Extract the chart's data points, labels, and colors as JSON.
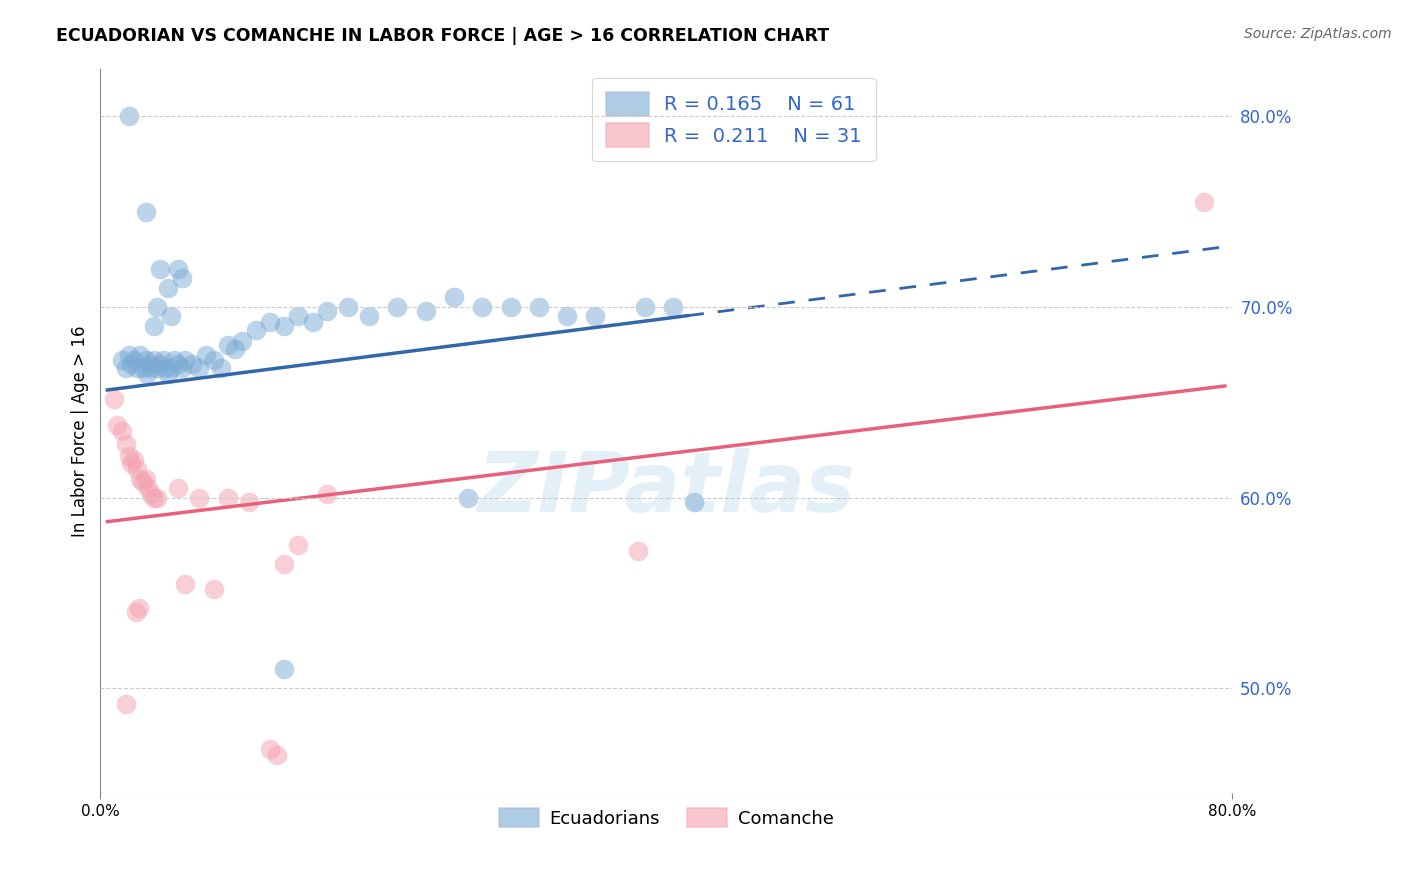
{
  "title": "ECUADORIAN VS COMANCHE IN LABOR FORCE | AGE > 16 CORRELATION CHART",
  "source": "Source: ZipAtlas.com",
  "ylabel": "In Labor Force | Age > 16",
  "legend_label_blue": "Ecuadorians",
  "legend_label_pink": "Comanche",
  "xlim": [
    0.0,
    0.8
  ],
  "ylim": [
    0.445,
    0.825
  ],
  "yticks_right": [
    0.5,
    0.6,
    0.7,
    0.8
  ],
  "ytick_labels_right": [
    "50.0%",
    "60.0%",
    "70.0%",
    "80.0%"
  ],
  "grid_color": "#cccccc",
  "watermark": "ZIPatlas",
  "blue_color": "#7AAAD4",
  "pink_color": "#F4A0B0",
  "blue_line_color": "#3366AA",
  "pink_line_color": "#E8607A",
  "blue_solid_xrange": [
    0.005,
    0.415
  ],
  "blue_dash_xrange": [
    0.415,
    0.795
  ],
  "blue_line_slope": 0.095,
  "blue_line_intercept": 0.656,
  "pink_line_slope": 0.09,
  "pink_line_intercept": 0.587,
  "blue_pts": [
    [
      0.02,
      0.8
    ],
    [
      0.032,
      0.75
    ],
    [
      0.038,
      0.69
    ],
    [
      0.04,
      0.7
    ],
    [
      0.042,
      0.72
    ],
    [
      0.048,
      0.71
    ],
    [
      0.05,
      0.695
    ],
    [
      0.055,
      0.72
    ],
    [
      0.058,
      0.715
    ],
    [
      0.015,
      0.672
    ],
    [
      0.018,
      0.668
    ],
    [
      0.02,
      0.675
    ],
    [
      0.022,
      0.67
    ],
    [
      0.024,
      0.672
    ],
    [
      0.026,
      0.668
    ],
    [
      0.028,
      0.675
    ],
    [
      0.03,
      0.668
    ],
    [
      0.032,
      0.672
    ],
    [
      0.033,
      0.665
    ],
    [
      0.035,
      0.67
    ],
    [
      0.036,
      0.668
    ],
    [
      0.038,
      0.672
    ],
    [
      0.04,
      0.668
    ],
    [
      0.042,
      0.67
    ],
    [
      0.044,
      0.672
    ],
    [
      0.046,
      0.668
    ],
    [
      0.048,
      0.665
    ],
    [
      0.05,
      0.668
    ],
    [
      0.052,
      0.672
    ],
    [
      0.055,
      0.67
    ],
    [
      0.058,
      0.668
    ],
    [
      0.06,
      0.672
    ],
    [
      0.065,
      0.67
    ],
    [
      0.07,
      0.668
    ],
    [
      0.075,
      0.675
    ],
    [
      0.08,
      0.672
    ],
    [
      0.085,
      0.668
    ],
    [
      0.09,
      0.68
    ],
    [
      0.095,
      0.678
    ],
    [
      0.1,
      0.682
    ],
    [
      0.11,
      0.688
    ],
    [
      0.12,
      0.692
    ],
    [
      0.13,
      0.69
    ],
    [
      0.14,
      0.695
    ],
    [
      0.15,
      0.692
    ],
    [
      0.16,
      0.698
    ],
    [
      0.175,
      0.7
    ],
    [
      0.19,
      0.695
    ],
    [
      0.21,
      0.7
    ],
    [
      0.23,
      0.698
    ],
    [
      0.25,
      0.705
    ],
    [
      0.27,
      0.7
    ],
    [
      0.29,
      0.7
    ],
    [
      0.31,
      0.7
    ],
    [
      0.33,
      0.695
    ],
    [
      0.35,
      0.695
    ],
    [
      0.385,
      0.7
    ],
    [
      0.405,
      0.7
    ],
    [
      0.13,
      0.51
    ],
    [
      0.26,
      0.6
    ],
    [
      0.42,
      0.598
    ]
  ],
  "pink_pts": [
    [
      0.01,
      0.652
    ],
    [
      0.012,
      0.638
    ],
    [
      0.015,
      0.635
    ],
    [
      0.018,
      0.628
    ],
    [
      0.02,
      0.622
    ],
    [
      0.022,
      0.618
    ],
    [
      0.024,
      0.62
    ],
    [
      0.026,
      0.615
    ],
    [
      0.028,
      0.61
    ],
    [
      0.03,
      0.608
    ],
    [
      0.032,
      0.61
    ],
    [
      0.034,
      0.605
    ],
    [
      0.036,
      0.602
    ],
    [
      0.038,
      0.6
    ],
    [
      0.04,
      0.6
    ],
    [
      0.055,
      0.605
    ],
    [
      0.07,
      0.6
    ],
    [
      0.09,
      0.6
    ],
    [
      0.105,
      0.598
    ],
    [
      0.13,
      0.565
    ],
    [
      0.14,
      0.575
    ],
    [
      0.16,
      0.602
    ],
    [
      0.018,
      0.492
    ],
    [
      0.025,
      0.54
    ],
    [
      0.027,
      0.542
    ],
    [
      0.06,
      0.555
    ],
    [
      0.08,
      0.552
    ],
    [
      0.12,
      0.468
    ],
    [
      0.125,
      0.465
    ],
    [
      0.38,
      0.572
    ],
    [
      0.78,
      0.755
    ]
  ]
}
